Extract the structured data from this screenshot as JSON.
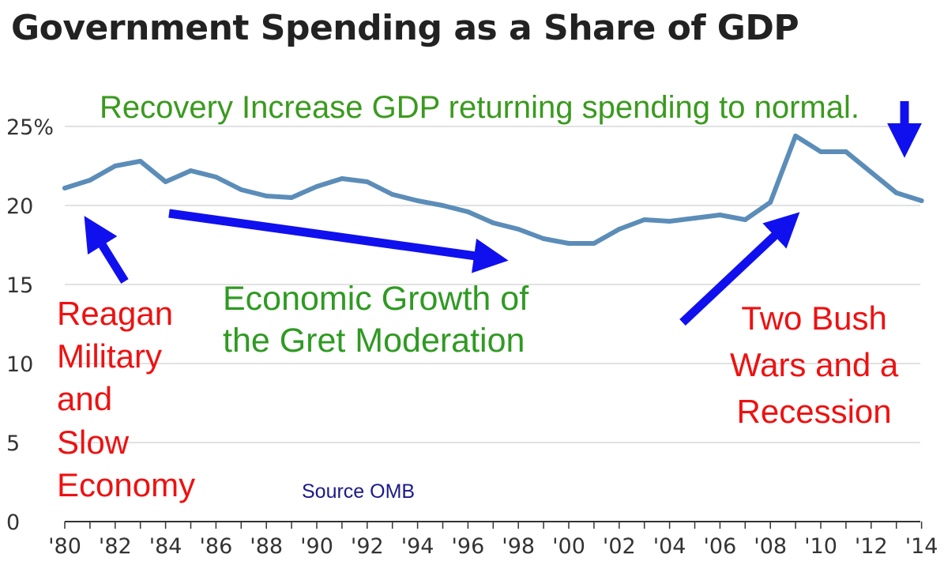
{
  "title": "Government Spending as a Share of GDP",
  "annotations": {
    "recovery": "Recovery Increase GDP returning spending to normal.",
    "reagan": [
      "Reagan",
      "Military",
      "and",
      "Slow",
      "Economy"
    ],
    "growth": [
      "Economic Growth of",
      "the Gret Moderation"
    ],
    "bush": [
      "Two Bush",
      "Wars and a",
      "Recession"
    ]
  },
  "source": "Source OMB",
  "colors": {
    "line": "#5b8db8",
    "arrow": "#1010ee",
    "green": "#3a9a1e",
    "red": "#ee1111",
    "grid": "#d9d9d9"
  },
  "chart_data": {
    "type": "line",
    "title": "Government Spending as a Share of GDP",
    "xlabel": "",
    "ylabel": "",
    "ylim": [
      0,
      25
    ],
    "xlim": [
      1980,
      2014
    ],
    "grid": true,
    "y_ticks": [
      {
        "value": 0,
        "label": "0"
      },
      {
        "value": 5,
        "label": "5"
      },
      {
        "value": 10,
        "label": "10"
      },
      {
        "value": 15,
        "label": "15"
      },
      {
        "value": 20,
        "label": "20"
      },
      {
        "value": 25,
        "label": "25%"
      }
    ],
    "x_ticks": [
      {
        "value": 1980,
        "label": "'80"
      },
      {
        "value": 1982,
        "label": "'82"
      },
      {
        "value": 1984,
        "label": "'84"
      },
      {
        "value": 1986,
        "label": "'86"
      },
      {
        "value": 1988,
        "label": "'88"
      },
      {
        "value": 1990,
        "label": "'90"
      },
      {
        "value": 1992,
        "label": "'92"
      },
      {
        "value": 1994,
        "label": "'94"
      },
      {
        "value": 1996,
        "label": "'96"
      },
      {
        "value": 1998,
        "label": "'98"
      },
      {
        "value": 2000,
        "label": "'00"
      },
      {
        "value": 2002,
        "label": "'02"
      },
      {
        "value": 2004,
        "label": "'04"
      },
      {
        "value": 2006,
        "label": "'06"
      },
      {
        "value": 2008,
        "label": "'08"
      },
      {
        "value": 2010,
        "label": "'10"
      },
      {
        "value": 2012,
        "label": "'12"
      },
      {
        "value": 2014,
        "label": "'14"
      }
    ],
    "x": [
      1980,
      1981,
      1982,
      1983,
      1984,
      1985,
      1986,
      1987,
      1988,
      1989,
      1990,
      1991,
      1992,
      1993,
      1994,
      1995,
      1996,
      1997,
      1998,
      1999,
      2000,
      2001,
      2002,
      2003,
      2004,
      2005,
      2006,
      2007,
      2008,
      2009,
      2010,
      2011,
      2012,
      2013,
      2014
    ],
    "series": [
      {
        "values": [
          21.1,
          21.6,
          22.5,
          22.8,
          21.5,
          22.2,
          21.8,
          21.0,
          20.6,
          20.5,
          21.2,
          21.7,
          21.5,
          20.7,
          20.3,
          20.0,
          19.6,
          18.9,
          18.5,
          17.9,
          17.6,
          17.6,
          18.5,
          19.1,
          19.0,
          19.2,
          19.4,
          19.1,
          20.2,
          24.4,
          23.4,
          23.4,
          22.1,
          20.8,
          20.3
        ]
      }
    ]
  }
}
